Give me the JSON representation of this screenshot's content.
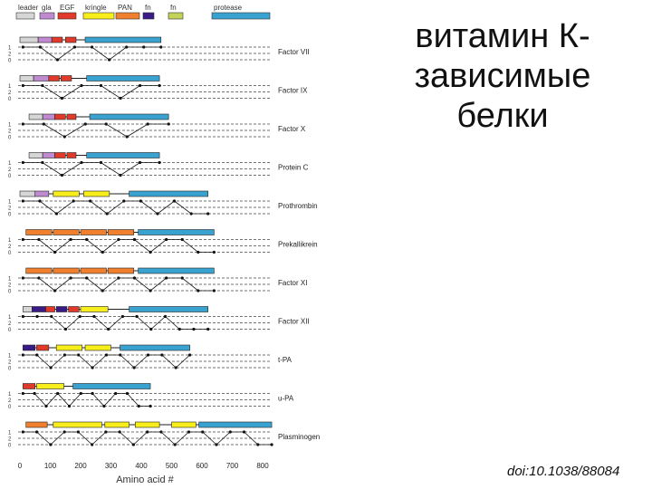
{
  "slide": {
    "title": "витамин К-зависимые белки",
    "doi": "doi:10.1038/88084"
  },
  "legend": {
    "items": [
      {
        "label": "leader",
        "color": "#d6d6d6"
      },
      {
        "label": "gla",
        "color": "#c08ad0"
      },
      {
        "label": "EGF",
        "color": "#e23a2a"
      },
      {
        "label": "kringle",
        "color": "#f7ee1c"
      },
      {
        "label": "PAN",
        "color": "#f07f2e"
      },
      {
        "label": "fn",
        "color": "#3a1a86"
      },
      {
        "label": "fn",
        "color": "#c3d35a"
      },
      {
        "label": "protease",
        "color": "#3aa2d0"
      }
    ]
  },
  "axis": {
    "ticks": [
      "0",
      "100",
      "200",
      "300",
      "400",
      "500",
      "600",
      "700",
      "800"
    ],
    "tick_values": [
      0,
      100,
      200,
      300,
      400,
      500,
      600,
      700,
      800
    ],
    "label": "Amino acid #",
    "phase_labels": [
      "1",
      "2",
      "0"
    ]
  },
  "proteins": [
    {
      "name": "Factor VII",
      "domains": [
        {
          "type": "leader",
          "start": 0,
          "end": 60
        },
        {
          "type": "gla",
          "start": 60,
          "end": 105
        },
        {
          "type": "EGF",
          "start": 105,
          "end": 140
        },
        {
          "type": "EGF",
          "start": 150,
          "end": 185
        },
        {
          "type": "protease",
          "start": 215,
          "end": 465
        }
      ],
      "phases": [
        1,
        1,
        0,
        1,
        1,
        0,
        1,
        1,
        1
      ]
    },
    {
      "name": "Factor IX",
      "domains": [
        {
          "type": "leader",
          "start": 0,
          "end": 45
        },
        {
          "type": "gla",
          "start": 45,
          "end": 95
        },
        {
          "type": "EGF",
          "start": 95,
          "end": 130
        },
        {
          "type": "EGF",
          "start": 135,
          "end": 170
        },
        {
          "type": "protease",
          "start": 220,
          "end": 460
        }
      ],
      "phases": [
        1,
        1,
        0,
        1,
        1,
        0,
        1,
        1
      ]
    },
    {
      "name": "Factor X",
      "domains": [
        {
          "type": "leader",
          "start": 30,
          "end": 75
        },
        {
          "type": "gla",
          "start": 75,
          "end": 115
        },
        {
          "type": "EGF",
          "start": 115,
          "end": 150
        },
        {
          "type": "EGF",
          "start": 155,
          "end": 185
        },
        {
          "type": "protease",
          "start": 230,
          "end": 490
        }
      ],
      "phases": [
        1,
        1,
        0,
        1,
        1,
        0,
        1,
        1
      ]
    },
    {
      "name": "Protein C",
      "domains": [
        {
          "type": "leader",
          "start": 30,
          "end": 75
        },
        {
          "type": "gla",
          "start": 75,
          "end": 115
        },
        {
          "type": "EGF",
          "start": 115,
          "end": 150
        },
        {
          "type": "EGF",
          "start": 155,
          "end": 185
        },
        {
          "type": "protease",
          "start": 220,
          "end": 460
        }
      ],
      "phases": [
        1,
        1,
        0,
        1,
        1,
        0,
        1,
        1
      ]
    },
    {
      "name": "Prothrombin",
      "domains": [
        {
          "type": "leader",
          "start": 0,
          "end": 50
        },
        {
          "type": "gla",
          "start": 50,
          "end": 95
        },
        {
          "type": "kringle",
          "start": 110,
          "end": 195
        },
        {
          "type": "kringle",
          "start": 210,
          "end": 295
        },
        {
          "type": "protease",
          "start": 360,
          "end": 620
        }
      ],
      "phases": [
        1,
        1,
        0,
        1,
        1,
        0,
        1,
        1,
        0,
        1,
        0,
        0
      ]
    },
    {
      "name": "Prekallikrein",
      "domains": [
        {
          "type": "PAN",
          "start": 20,
          "end": 105
        },
        {
          "type": "PAN",
          "start": 110,
          "end": 195
        },
        {
          "type": "PAN",
          "start": 200,
          "end": 285
        },
        {
          "type": "PAN",
          "start": 290,
          "end": 375
        },
        {
          "type": "protease",
          "start": 390,
          "end": 640
        }
      ],
      "phases": [
        1,
        1,
        0,
        1,
        1,
        0,
        1,
        1,
        0,
        1,
        1,
        0,
        0
      ]
    },
    {
      "name": "Factor XI",
      "domains": [
        {
          "type": "PAN",
          "start": 20,
          "end": 105
        },
        {
          "type": "PAN",
          "start": 110,
          "end": 195
        },
        {
          "type": "PAN",
          "start": 200,
          "end": 285
        },
        {
          "type": "PAN",
          "start": 290,
          "end": 375
        },
        {
          "type": "protease",
          "start": 390,
          "end": 640
        }
      ],
      "phases": [
        1,
        1,
        0,
        1,
        1,
        0,
        1,
        1,
        0,
        1,
        1,
        0,
        0
      ]
    },
    {
      "name": "Factor XII",
      "domains": [
        {
          "type": "leader",
          "start": 10,
          "end": 40
        },
        {
          "type": "fn",
          "start": 40,
          "end": 85
        },
        {
          "type": "EGF",
          "start": 85,
          "end": 115
        },
        {
          "type": "fn",
          "start": 120,
          "end": 155
        },
        {
          "type": "EGF",
          "start": 160,
          "end": 195
        },
        {
          "type": "kringle",
          "start": 200,
          "end": 290
        },
        {
          "type": "protease",
          "start": 360,
          "end": 620
        }
      ],
      "phases": [
        1,
        1,
        1,
        0,
        1,
        1,
        0,
        1,
        1,
        0,
        1,
        0,
        0,
        0
      ]
    },
    {
      "name": "t-PA",
      "domains": [
        {
          "type": "fn",
          "start": 10,
          "end": 50
        },
        {
          "type": "EGF",
          "start": 55,
          "end": 95
        },
        {
          "type": "kringle",
          "start": 120,
          "end": 205
        },
        {
          "type": "kringle",
          "start": 215,
          "end": 300
        },
        {
          "type": "protease",
          "start": 330,
          "end": 560
        }
      ],
      "phases": [
        1,
        1,
        0,
        1,
        1,
        0,
        1,
        1,
        0,
        1,
        1,
        0,
        1
      ]
    },
    {
      "name": "u-PA",
      "domains": [
        {
          "type": "EGF",
          "start": 10,
          "end": 50
        },
        {
          "type": "kringle",
          "start": 55,
          "end": 145
        },
        {
          "type": "protease",
          "start": 175,
          "end": 430
        }
      ],
      "phases": [
        1,
        1,
        0,
        1,
        0,
        1,
        1,
        0,
        1,
        1,
        0,
        0
      ]
    },
    {
      "name": "Plasminogen",
      "domains": [
        {
          "type": "PAN",
          "start": 20,
          "end": 90
        },
        {
          "type": "kringle",
          "start": 110,
          "end": 270
        },
        {
          "type": "kringle",
          "start": 280,
          "end": 360
        },
        {
          "type": "kringle",
          "start": 380,
          "end": 460
        },
        {
          "type": "kringle",
          "start": 500,
          "end": 580
        },
        {
          "type": "protease",
          "start": 590,
          "end": 830
        }
      ],
      "phases": [
        1,
        1,
        0,
        1,
        1,
        0,
        1,
        1,
        0,
        1,
        1,
        0,
        1,
        1,
        0,
        1,
        1,
        0,
        0
      ]
    }
  ]
}
